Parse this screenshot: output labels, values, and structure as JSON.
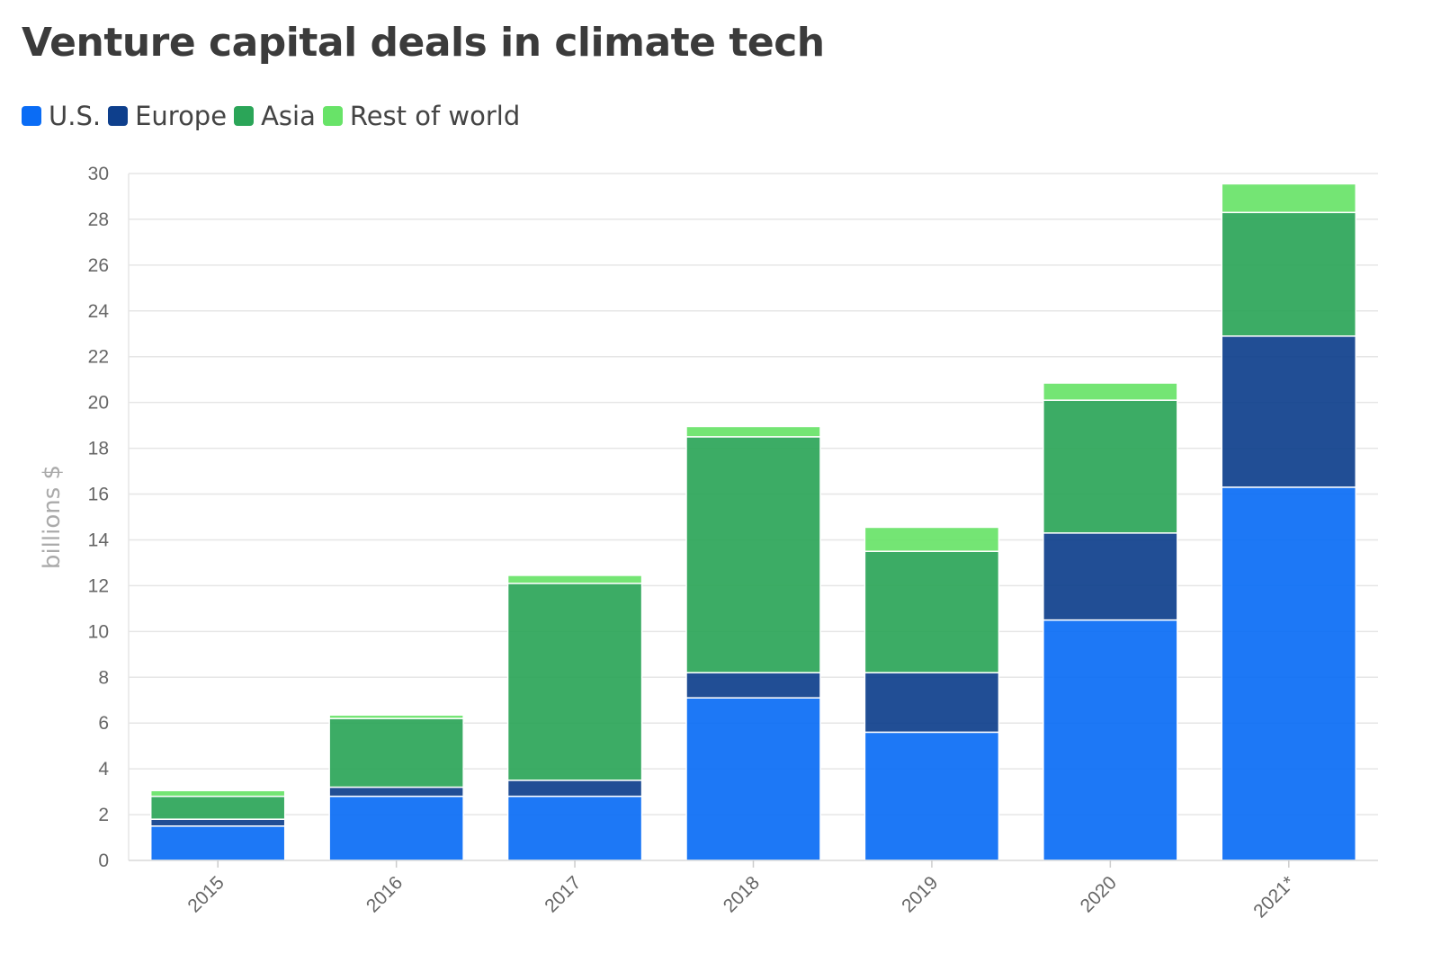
{
  "header": {
    "title": "Venture capital deals in climate tech"
  },
  "chart_data": {
    "type": "bar",
    "stacked": true,
    "title": "Venture capital deals in climate tech",
    "xlabel": "",
    "ylabel": "billions $",
    "ylim": [
      0,
      30
    ],
    "yticks": [
      0,
      2,
      4,
      6,
      8,
      10,
      12,
      14,
      16,
      18,
      20,
      22,
      24,
      26,
      28,
      30
    ],
    "grid": true,
    "legend_position": "top-left",
    "categories": [
      "2015",
      "2016",
      "2017",
      "2018",
      "2019",
      "2020",
      "2021*"
    ],
    "series": [
      {
        "name": "U.S.",
        "color": "#0a6cf5",
        "values": [
          1.5,
          2.8,
          2.8,
          7.1,
          5.6,
          10.5,
          16.3
        ]
      },
      {
        "name": "Europe",
        "color": "#0e3f8c",
        "values": [
          0.3,
          0.4,
          0.7,
          1.1,
          2.6,
          3.8,
          6.6
        ]
      },
      {
        "name": "Asia",
        "color": "#2ba558",
        "values": [
          1.0,
          3.0,
          8.6,
          10.3,
          5.3,
          5.8,
          5.4
        ]
      },
      {
        "name": "Rest of world",
        "color": "#68e368",
        "values": [
          0.25,
          0.15,
          0.35,
          0.45,
          1.05,
          0.75,
          1.25
        ]
      }
    ]
  }
}
